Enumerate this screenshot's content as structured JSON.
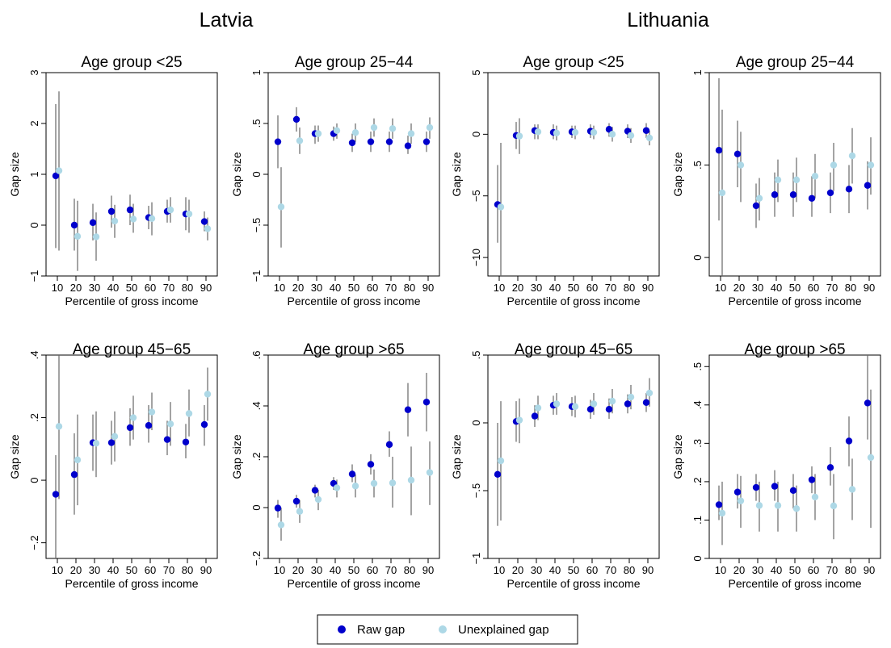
{
  "countries": [
    "Latvia",
    "Lithuania"
  ],
  "legend": {
    "raw": "Raw gap",
    "unexplained": "Unexplained gap"
  },
  "colors": {
    "raw": "#0000cc",
    "unexplained": "#add8e6",
    "ci": "#666666"
  },
  "chart_data": [
    {
      "type": "scatter",
      "country": "Latvia",
      "title": "Age group <25",
      "xlabel": "Percentile of gross income",
      "ylabel": "Gap size",
      "x": [
        10,
        20,
        30,
        40,
        50,
        60,
        70,
        80,
        90
      ],
      "ylim": [
        -1,
        3
      ],
      "yticks": [
        -1,
        0,
        1,
        2,
        3
      ],
      "yticklabels": [
        "−1",
        "0",
        "1",
        "2",
        "3"
      ],
      "series": [
        {
          "name": "Raw gap",
          "values": [
            0.97,
            0.0,
            0.05,
            0.27,
            0.3,
            0.15,
            0.27,
            0.22,
            0.07
          ],
          "ci_low": [
            -0.45,
            -0.5,
            -0.3,
            -0.05,
            0.0,
            -0.08,
            0.05,
            -0.1,
            -0.12
          ],
          "ci_high": [
            2.38,
            0.52,
            0.42,
            0.58,
            0.6,
            0.38,
            0.5,
            0.55,
            0.27
          ]
        },
        {
          "name": "Unexplained gap",
          "values": [
            1.07,
            -0.22,
            -0.23,
            0.08,
            0.12,
            0.13,
            0.3,
            0.22,
            -0.07
          ],
          "ci_low": [
            -0.5,
            -0.9,
            -0.7,
            -0.25,
            -0.15,
            -0.2,
            0.05,
            -0.15,
            -0.3
          ],
          "ci_high": [
            2.63,
            0.48,
            0.25,
            0.4,
            0.42,
            0.45,
            0.55,
            0.5,
            0.15
          ]
        }
      ]
    },
    {
      "type": "scatter",
      "country": "Latvia",
      "title": "Age group 25−44",
      "xlabel": "Percentile of gross income",
      "ylabel": "Gap size",
      "x": [
        10,
        20,
        30,
        40,
        50,
        60,
        70,
        80,
        90
      ],
      "ylim": [
        -1,
        1
      ],
      "yticks": [
        -1,
        -0.5,
        0,
        0.5,
        1
      ],
      "yticklabels": [
        "−1",
        "−.5",
        "0",
        ".5",
        "1"
      ],
      "series": [
        {
          "name": "Raw gap",
          "values": [
            0.32,
            0.54,
            0.4,
            0.4,
            0.31,
            0.32,
            0.32,
            0.28,
            0.32
          ],
          "ci_low": [
            0.06,
            0.42,
            0.3,
            0.33,
            0.22,
            0.22,
            0.22,
            0.2,
            0.22
          ],
          "ci_high": [
            0.58,
            0.66,
            0.48,
            0.47,
            0.4,
            0.42,
            0.42,
            0.38,
            0.42
          ]
        },
        {
          "name": "Unexplained gap",
          "values": [
            -0.32,
            0.33,
            0.4,
            0.43,
            0.41,
            0.46,
            0.45,
            0.4,
            0.46
          ],
          "ci_low": [
            -0.72,
            0.2,
            0.32,
            0.35,
            0.32,
            0.37,
            0.35,
            0.3,
            0.35
          ],
          "ci_high": [
            0.07,
            0.46,
            0.48,
            0.5,
            0.5,
            0.55,
            0.55,
            0.5,
            0.56
          ]
        }
      ]
    },
    {
      "type": "scatter",
      "country": "Lithuania",
      "title": "Age group <25",
      "xlabel": "Percentile of gross income",
      "ylabel": "Gap size",
      "x": [
        10,
        20,
        30,
        40,
        50,
        60,
        70,
        80,
        90
      ],
      "ylim": [
        -11.5,
        5
      ],
      "yticks": [
        -10,
        -5,
        0,
        5
      ],
      "yticklabels": [
        "−10",
        "−5",
        "0",
        "5"
      ],
      "series": [
        {
          "name": "Raw gap",
          "values": [
            -5.7,
            -0.1,
            0.3,
            0.15,
            0.2,
            0.25,
            0.4,
            0.25,
            0.3
          ],
          "ci_low": [
            -8.8,
            -1.2,
            -0.4,
            -0.4,
            -0.3,
            -0.3,
            -0.2,
            -0.3,
            -0.3
          ],
          "ci_high": [
            -2.5,
            1.0,
            0.8,
            0.8,
            0.7,
            0.8,
            0.9,
            0.8,
            0.9
          ]
        },
        {
          "name": "Unexplained gap",
          "values": [
            -5.9,
            -0.15,
            0.2,
            0.1,
            0.15,
            0.15,
            0.0,
            -0.1,
            -0.3
          ],
          "ci_low": [
            -11.5,
            -1.6,
            -0.4,
            -0.5,
            -0.4,
            -0.4,
            -0.6,
            -0.7,
            -0.9
          ],
          "ci_high": [
            -0.7,
            1.3,
            0.8,
            0.7,
            0.7,
            0.7,
            0.6,
            0.5,
            0.3
          ]
        }
      ]
    },
    {
      "type": "scatter",
      "country": "Lithuania",
      "title": "Age group 25−44",
      "xlabel": "Percentile of gross income",
      "ylabel": "Gap size",
      "x": [
        10,
        20,
        30,
        40,
        50,
        60,
        70,
        80,
        90
      ],
      "ylim": [
        -0.1,
        1
      ],
      "yticks": [
        0,
        0.5,
        1
      ],
      "yticklabels": [
        "0",
        ".5",
        "1"
      ],
      "series": [
        {
          "name": "Raw gap",
          "values": [
            0.58,
            0.56,
            0.28,
            0.34,
            0.34,
            0.32,
            0.35,
            0.37,
            0.39
          ],
          "ci_low": [
            0.2,
            0.38,
            0.16,
            0.22,
            0.22,
            0.22,
            0.24,
            0.24,
            0.26
          ],
          "ci_high": [
            0.97,
            0.74,
            0.4,
            0.46,
            0.46,
            0.44,
            0.46,
            0.5,
            0.52
          ]
        },
        {
          "name": "Unexplained gap",
          "values": [
            0.35,
            0.5,
            0.32,
            0.42,
            0.42,
            0.44,
            0.5,
            0.55,
            0.5
          ],
          "ci_low": [
            -0.1,
            0.3,
            0.2,
            0.3,
            0.3,
            0.32,
            0.36,
            0.4,
            0.34
          ],
          "ci_high": [
            0.8,
            0.68,
            0.43,
            0.53,
            0.54,
            0.56,
            0.62,
            0.7,
            0.65
          ]
        }
      ]
    },
    {
      "type": "scatter",
      "country": "Latvia",
      "title": "Age group 45−65",
      "xlabel": "Percentile of gross income",
      "ylabel": "Gap size",
      "x": [
        10,
        20,
        30,
        40,
        50,
        60,
        70,
        80,
        90
      ],
      "ylim": [
        -0.25,
        0.4
      ],
      "yticks": [
        -0.2,
        0,
        0.2,
        0.4
      ],
      "yticklabels": [
        "−.2",
        "0",
        ".2",
        ".4"
      ],
      "series": [
        {
          "name": "Raw gap",
          "values": [
            -0.045,
            0.018,
            0.12,
            0.12,
            0.168,
            0.175,
            0.13,
            0.122,
            0.178
          ],
          "ci_low": [
            -0.25,
            -0.11,
            0.03,
            0.05,
            0.11,
            0.12,
            0.08,
            0.07,
            0.11
          ],
          "ci_high": [
            0.08,
            0.15,
            0.21,
            0.19,
            0.23,
            0.24,
            0.19,
            0.18,
            0.24
          ]
        },
        {
          "name": "Unexplained gap",
          "values": [
            0.172,
            0.065,
            0.118,
            0.14,
            0.2,
            0.218,
            0.18,
            0.213,
            0.275
          ],
          "ci_low": [
            -0.06,
            -0.08,
            0.01,
            0.06,
            0.13,
            0.16,
            0.11,
            0.14,
            0.19
          ],
          "ci_high": [
            0.4,
            0.21,
            0.22,
            0.22,
            0.27,
            0.28,
            0.25,
            0.29,
            0.36
          ]
        }
      ]
    },
    {
      "type": "scatter",
      "country": "Latvia",
      "title": "Age group >65",
      "xlabel": "Percentile of gross income",
      "ylabel": "Gap size",
      "x": [
        10,
        20,
        30,
        40,
        50,
        60,
        70,
        80,
        90
      ],
      "ylim": [
        -0.2,
        0.6
      ],
      "yticks": [
        -0.2,
        0,
        0.2,
        0.4,
        0.6
      ],
      "yticklabels": [
        "−.2",
        "0",
        ".2",
        ".4",
        ".6"
      ],
      "series": [
        {
          "name": "Raw gap",
          "values": [
            -0.002,
            0.025,
            0.068,
            0.095,
            0.132,
            0.17,
            0.248,
            0.385,
            0.415
          ],
          "ci_low": [
            -0.04,
            0.0,
            0.04,
            0.07,
            0.1,
            0.13,
            0.2,
            0.28,
            0.3
          ],
          "ci_high": [
            0.03,
            0.05,
            0.09,
            0.12,
            0.17,
            0.21,
            0.3,
            0.49,
            0.53
          ]
        },
        {
          "name": "Unexplained gap",
          "values": [
            -0.068,
            -0.015,
            0.032,
            0.078,
            0.085,
            0.095,
            0.097,
            0.108,
            0.138
          ],
          "ci_low": [
            -0.13,
            -0.06,
            -0.01,
            0.04,
            0.04,
            0.04,
            0.0,
            -0.03,
            0.01
          ],
          "ci_high": [
            0.0,
            0.03,
            0.07,
            0.11,
            0.13,
            0.15,
            0.2,
            0.24,
            0.26
          ]
        }
      ]
    },
    {
      "type": "scatter",
      "country": "Lithuania",
      "title": "Age group 45−65",
      "xlabel": "Percentile of gross income",
      "ylabel": "Gap size",
      "x": [
        10,
        20,
        30,
        40,
        50,
        60,
        70,
        80,
        90
      ],
      "ylim": [
        -1,
        0.5
      ],
      "yticks": [
        -1,
        -0.5,
        0,
        0.5
      ],
      "yticklabels": [
        "−1",
        "−.5",
        "0",
        ".5"
      ],
      "series": [
        {
          "name": "Raw gap",
          "values": [
            -0.38,
            0.01,
            0.05,
            0.13,
            0.12,
            0.1,
            0.1,
            0.14,
            0.15
          ],
          "ci_low": [
            -0.76,
            -0.14,
            -0.03,
            0.06,
            0.05,
            0.03,
            0.03,
            0.07,
            0.08
          ],
          "ci_high": [
            0.0,
            0.16,
            0.13,
            0.2,
            0.19,
            0.17,
            0.18,
            0.21,
            0.22
          ]
        },
        {
          "name": "Unexplained gap",
          "values": [
            -0.28,
            0.02,
            0.11,
            0.14,
            0.12,
            0.14,
            0.16,
            0.19,
            0.22
          ],
          "ci_low": [
            -0.72,
            -0.15,
            0.02,
            0.06,
            0.04,
            0.06,
            0.07,
            0.1,
            0.12
          ],
          "ci_high": [
            0.16,
            0.18,
            0.2,
            0.22,
            0.2,
            0.22,
            0.25,
            0.28,
            0.33
          ]
        }
      ]
    },
    {
      "type": "scatter",
      "country": "Lithuania",
      "title": "Age group >65",
      "xlabel": "Percentile of gross income",
      "ylabel": "Gap size",
      "x": [
        10,
        20,
        30,
        40,
        50,
        60,
        70,
        80,
        90
      ],
      "ylim": [
        0,
        0.53
      ],
      "yticks": [
        0,
        0.1,
        0.2,
        0.3,
        0.4,
        0.5
      ],
      "yticklabels": [
        "0",
        ".1",
        ".2",
        ".3",
        ".4",
        ".5"
      ],
      "series": [
        {
          "name": "Raw gap",
          "values": [
            0.14,
            0.173,
            0.185,
            0.188,
            0.177,
            0.205,
            0.237,
            0.306,
            0.405
          ],
          "ci_low": [
            0.1,
            0.13,
            0.15,
            0.15,
            0.13,
            0.17,
            0.19,
            0.24,
            0.31
          ],
          "ci_high": [
            0.19,
            0.22,
            0.22,
            0.23,
            0.22,
            0.24,
            0.29,
            0.37,
            0.53
          ]
        },
        {
          "name": "Unexplained gap",
          "values": [
            0.118,
            0.15,
            0.138,
            0.138,
            0.13,
            0.16,
            0.137,
            0.18,
            0.263
          ],
          "ci_low": [
            0.035,
            0.08,
            0.07,
            0.07,
            0.07,
            0.1,
            0.05,
            0.1,
            0.08
          ],
          "ci_high": [
            0.2,
            0.215,
            0.2,
            0.2,
            0.19,
            0.22,
            0.22,
            0.26,
            0.44
          ]
        }
      ]
    }
  ]
}
